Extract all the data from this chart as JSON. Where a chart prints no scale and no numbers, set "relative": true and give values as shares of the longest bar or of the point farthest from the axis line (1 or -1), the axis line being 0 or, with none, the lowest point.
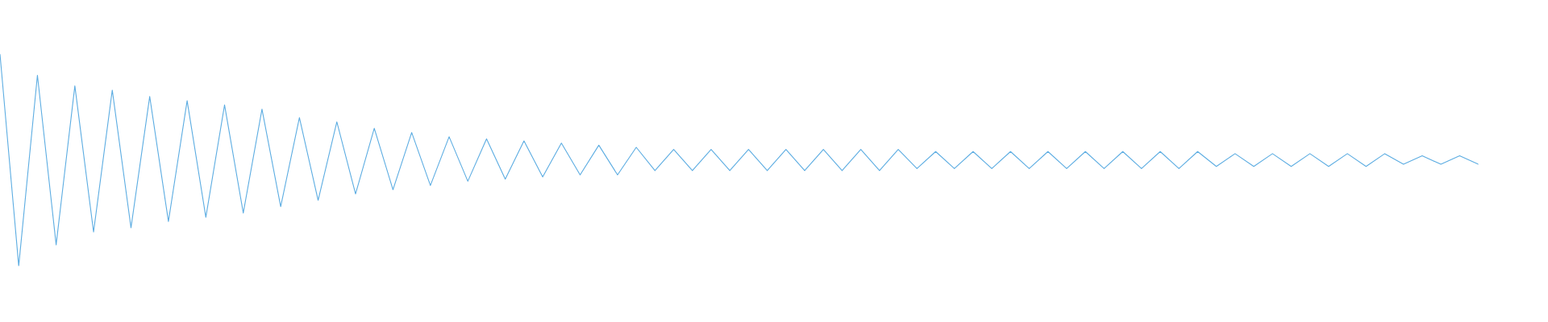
{
  "chart_data": {
    "type": "line",
    "relative": true,
    "categories": [
      null,
      null,
      null,
      null,
      null,
      null,
      null,
      null,
      null,
      null,
      null,
      null,
      null,
      null,
      null,
      null,
      null,
      null,
      null,
      null,
      null,
      null,
      null,
      null,
      null,
      null,
      null,
      null,
      null,
      null,
      null,
      null,
      null,
      null,
      null,
      null,
      null,
      null,
      null,
      null,
      null,
      null,
      null,
      null,
      null,
      null,
      null,
      null,
      null,
      null,
      null,
      null,
      null,
      null,
      null,
      null,
      null,
      null,
      null,
      null,
      null,
      null,
      null,
      null,
      null,
      null,
      null,
      null,
      null,
      null,
      null,
      null,
      null,
      null,
      null,
      null,
      null,
      null,
      null,
      null
    ],
    "series": [
      {
        "color": "#5dade2",
        "values": [
          1.0,
          0.0,
          0.9,
          0.1,
          0.85,
          0.16,
          0.83,
          0.18,
          0.8,
          0.21,
          0.78,
          0.23,
          0.76,
          0.25,
          0.74,
          0.28,
          0.7,
          0.31,
          0.68,
          0.34,
          0.65,
          0.36,
          0.63,
          0.38,
          0.61,
          0.4,
          0.6,
          0.41,
          0.59,
          0.42,
          0.58,
          0.43,
          0.57,
          0.43,
          0.56,
          0.45,
          0.55,
          0.45,
          0.55,
          0.45,
          0.55,
          0.45,
          0.55,
          0.45,
          0.55,
          0.45,
          0.55,
          0.45,
          0.55,
          0.46,
          0.54,
          0.46,
          0.54,
          0.46,
          0.54,
          0.46,
          0.54,
          0.46,
          0.54,
          0.46,
          0.54,
          0.46,
          0.54,
          0.46,
          0.54,
          0.47,
          0.53,
          0.47,
          0.53,
          0.47,
          0.53,
          0.47,
          0.53,
          0.47,
          0.53,
          0.48,
          0.52,
          0.48,
          0.52,
          0.48
        ]
      }
    ]
  }
}
